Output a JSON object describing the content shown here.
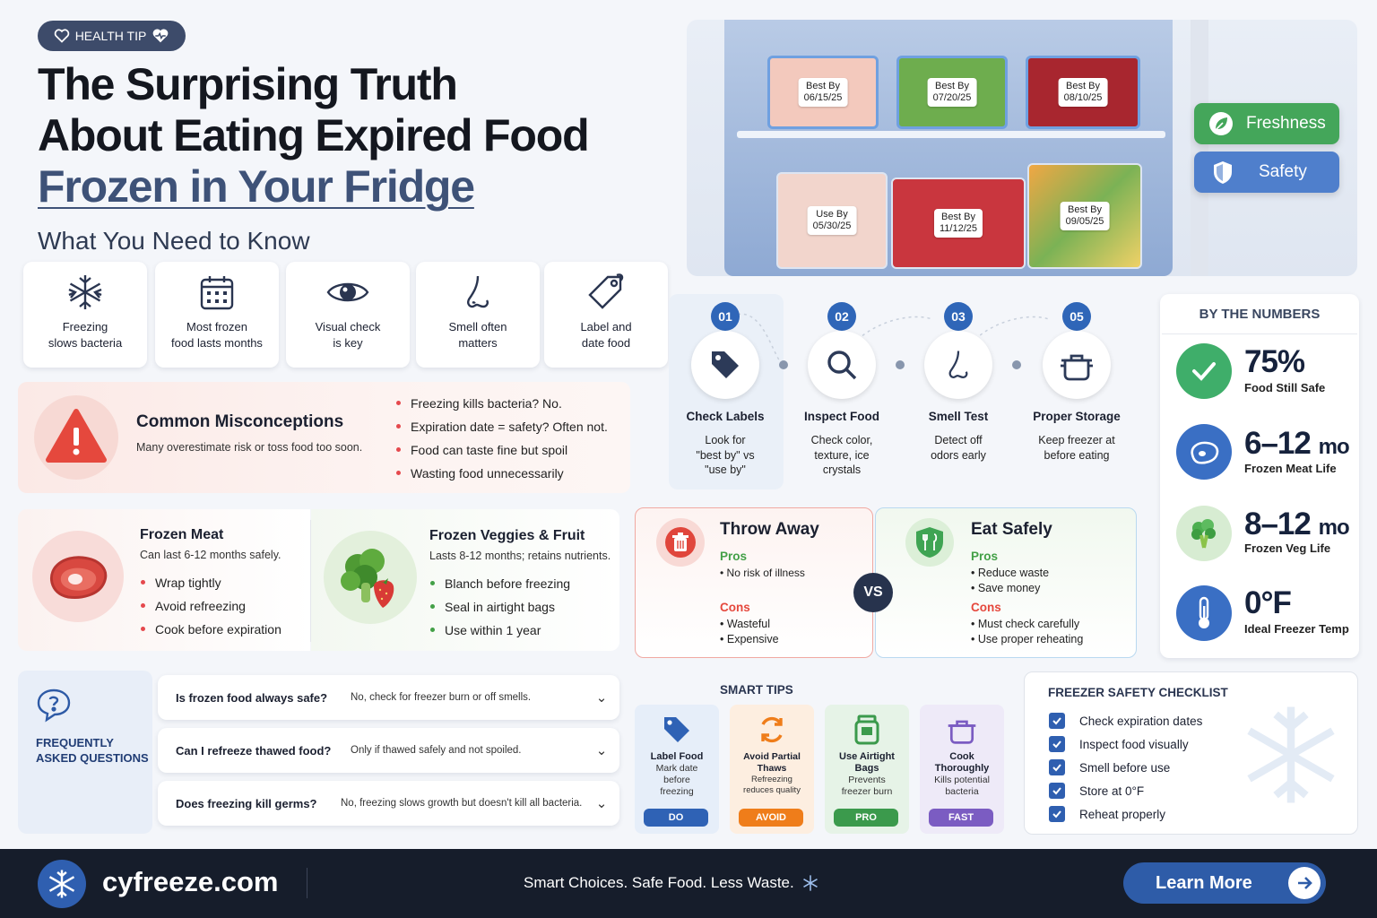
{
  "header": {
    "badge": "HEALTH TIP",
    "title_line1": "The Surprising Truth",
    "title_line2": "About Eating Expired Food",
    "title_line3": "Frozen in Your Fridge",
    "subtitle": "What You Need to Know"
  },
  "features": [
    {
      "icon": "snowflake-icon",
      "line1": "Freezing",
      "line2": "slows bacteria"
    },
    {
      "icon": "calendar-icon",
      "line1": "Most frozen",
      "line2": "food lasts months"
    },
    {
      "icon": "eye-icon",
      "line1": "Visual check",
      "line2": "is key"
    },
    {
      "icon": "nose-icon",
      "line1": "Smell often",
      "line2": "matters"
    },
    {
      "icon": "tag-icon",
      "line1": "Label and",
      "line2": "date food"
    }
  ],
  "misconceptions": {
    "title": "Common Misconceptions",
    "subtitle": "Many overestimate risk or toss food too soon.",
    "items": [
      "Freezing kills bacteria? No.",
      "Expiration date = safety? Often not.",
      "Food can taste fine but spoil",
      "Wasting food unnecessarily"
    ]
  },
  "meat": {
    "title": "Frozen Meat",
    "subtitle": "Can last 6-12 months safely.",
    "items": [
      "Wrap tightly",
      "Avoid refreezing",
      "Cook before expiration"
    ]
  },
  "veggies": {
    "title": "Frozen Veggies & Fruit",
    "subtitle": "Lasts 8-12 months; retains nutrients.",
    "items": [
      "Blanch before freezing",
      "Seal in airtight bags",
      "Use within 1 year"
    ]
  },
  "faq": {
    "title_line1": "FREQUENTLY",
    "title_line2": "ASKED QUESTIONS",
    "rows": [
      {
        "q": "Is frozen food always safe?",
        "a": "No, check for freezer burn or off smells."
      },
      {
        "q": "Can I refreeze thawed food?",
        "a": "Only if thawed safely and not spoiled."
      },
      {
        "q": "Does freezing kill germs?",
        "a": "No, freezing slows growth but doesn't kill all bacteria."
      }
    ]
  },
  "fridge": {
    "labels": [
      {
        "line1": "Best By",
        "line2": "06/15/25"
      },
      {
        "line1": "Best By",
        "line2": "07/20/25"
      },
      {
        "line1": "Best By",
        "line2": "08/10/25"
      },
      {
        "line1": "Use By",
        "line2": "05/30/25"
      },
      {
        "line1": "Best By",
        "line2": "11/12/25"
      },
      {
        "line1": "Best By",
        "line2": "09/05/25"
      }
    ],
    "pill_freshness": "Freshness",
    "pill_safety": "Safety"
  },
  "steps": [
    {
      "num": "01",
      "icon": "tag-icon",
      "title": "Check Labels",
      "desc1": "Look for",
      "desc2": "\"best by\" vs",
      "desc3": "\"use by\""
    },
    {
      "num": "02",
      "icon": "magnifier-icon",
      "title": "Inspect Food",
      "desc1": "Check color,",
      "desc2": "texture, ice",
      "desc3": "crystals"
    },
    {
      "num": "03",
      "icon": "nose-icon",
      "title": "Smell Test",
      "desc1": "Detect off",
      "desc2": "odors early",
      "desc3": ""
    },
    {
      "num": "05",
      "icon": "pot-icon",
      "title": "Proper Storage",
      "desc1": "Keep freezer at",
      "desc2": "before eating",
      "desc3": ""
    }
  ],
  "comparison": {
    "vs": "VS",
    "throw": {
      "title": "Throw Away",
      "pros_label": "Pros",
      "pros": [
        "No risk of illness"
      ],
      "cons_label": "Cons",
      "cons": [
        "Wasteful",
        "Expensive"
      ]
    },
    "eat": {
      "title": "Eat Safely",
      "pros_label": "Pros",
      "pros": [
        "Reduce waste",
        "Save money"
      ],
      "cons_label": "Cons",
      "cons": [
        "Must check carefully",
        "Use proper reheating"
      ]
    }
  },
  "numbers": {
    "title": "BY THE NUMBERS",
    "items": [
      {
        "icon": "check-icon",
        "value": "75%",
        "unit": "",
        "label": "Food Still Safe",
        "color": "#3fae6a"
      },
      {
        "icon": "meat-icon",
        "value": "6–12",
        "unit": "mo",
        "label": "Frozen Meat Life",
        "color": "#3a6fc4"
      },
      {
        "icon": "broccoli-icon",
        "value": "8–12",
        "unit": "mo",
        "label": "Frozen Veg Life",
        "color": "#4caf50"
      },
      {
        "icon": "thermometer-icon",
        "value": "0°F",
        "unit": "",
        "label": "Ideal Freezer Temp",
        "color": "#3a6fc4"
      }
    ]
  },
  "smart_tips": {
    "title": "SMART TIPS",
    "cards": [
      {
        "icon": "tag-icon",
        "title": "Label Food",
        "desc": "Mark date before freezing",
        "tag": "DO",
        "color": "#2f62b5",
        "bg": "#e6eef9"
      },
      {
        "icon": "refresh-icon",
        "title": "Avoid Partial Thaws",
        "desc": "Refreezing reduces quality",
        "tag": "AVOID",
        "color": "#ef7d1a",
        "bg": "#fdeee0"
      },
      {
        "icon": "jar-icon",
        "title": "Use Airtight Bags",
        "desc": "Prevents freezer burn",
        "tag": "PRO",
        "color": "#3b9a4c",
        "bg": "#e6f3e7"
      },
      {
        "icon": "pot-icon",
        "title": "Cook Thoroughly",
        "desc": "Kills potential bacteria",
        "tag": "FAST",
        "color": "#7b5cc2",
        "bg": "#eeeaf8"
      }
    ]
  },
  "checklist": {
    "title": "FREEZER SAFETY CHECKLIST",
    "items": [
      "Check expiration dates",
      "Inspect food visually",
      "Smell before use",
      "Store at 0°F",
      "Reheat properly"
    ]
  },
  "footer": {
    "site": "cyfreeze.com",
    "tagline": "Smart Choices. Safe Food. Less Waste.",
    "cta": "Learn More"
  }
}
